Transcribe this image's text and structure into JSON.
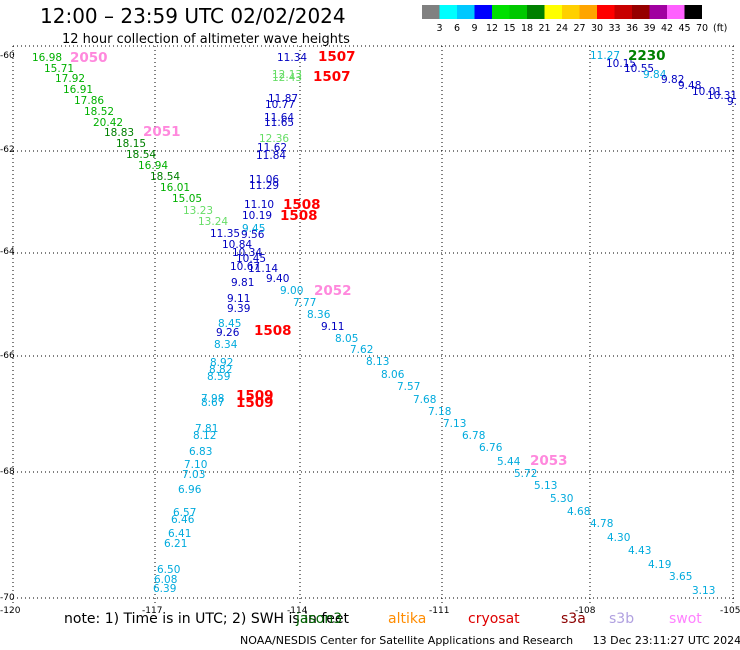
{
  "header": {
    "title": "12:00 – 23:59 UTC 02/02/2024",
    "subtitle": "12 hour collection of altimeter wave heights"
  },
  "legend": {
    "colors": [
      "#808080",
      "#00ffff",
      "#00c8ff",
      "#0000ff",
      "#00e000",
      "#00c800",
      "#008000",
      "#ffff00",
      "#ffd000",
      "#ffa500",
      "#ff0000",
      "#c80000",
      "#960000",
      "#a000a0",
      "#ff60ff",
      "#000000"
    ],
    "labels": [
      "3",
      "6",
      "9",
      "12",
      "15",
      "18",
      "21",
      "24",
      "27",
      "30",
      "33",
      "36",
      "39",
      "42",
      "45",
      "70"
    ],
    "unit": "(ft)"
  },
  "axes": {
    "lat_labels": [
      "-60",
      "-62",
      "-64",
      "-66",
      "-68",
      "-70"
    ],
    "lon_labels": [
      "-120",
      "-117",
      "-114",
      "-111",
      "-108",
      "-105"
    ]
  },
  "note": {
    "prefix": "note:  1) Time is in UTC;  2) SWH is in feet",
    "satellites": [
      {
        "name": "jason3",
        "color": "#006400"
      },
      {
        "name": "altika",
        "color": "#ff8c00"
      },
      {
        "name": "cryosat",
        "color": "#dd0000"
      },
      {
        "name": "s3a",
        "color": "#8b0000"
      },
      {
        "name": "s3b",
        "color": "#b0a0e0"
      },
      {
        "name": "swot",
        "color": "#ff80ff"
      }
    ]
  },
  "credit": {
    "source": "NOAA/NESDIS Center for Satellite Applications and Research",
    "timestamp": "13 Dec 23:11:27 UTC 2024"
  },
  "tracks": [
    {
      "id": "track-1508",
      "label_color": "#ff0000",
      "times": [
        "1507",
        "1507",
        "1508",
        "1508",
        "1508",
        "1509",
        "1509"
      ]
    },
    {
      "id": "track-2050",
      "label_color": "#ff88dd",
      "times": [
        "2050",
        "2051",
        "2052",
        "2053"
      ]
    },
    {
      "id": "track-2230",
      "label_color": "#008000",
      "times": [
        "2230"
      ]
    }
  ],
  "observations": [
    {
      "swh": "16.98",
      "color": "#00b000"
    },
    {
      "swh": "15.71",
      "color": "#00b000"
    },
    {
      "swh": "17.92",
      "color": "#00b000"
    },
    {
      "swh": "16.91",
      "color": "#00b000"
    },
    {
      "swh": "17.86",
      "color": "#00b000"
    },
    {
      "swh": "18.52",
      "color": "#00b000"
    },
    {
      "swh": "20.42",
      "color": "#00b000"
    },
    {
      "swh": "18.83",
      "color": "#008000"
    },
    {
      "swh": "18.15",
      "color": "#008000"
    },
    {
      "swh": "18.54",
      "color": "#008000"
    },
    {
      "swh": "16.94",
      "color": "#00b000"
    },
    {
      "swh": "18.54",
      "color": "#008000"
    },
    {
      "swh": "16.01",
      "color": "#00b000"
    },
    {
      "swh": "15.05",
      "color": "#00b000"
    },
    {
      "swh": "13.23",
      "color": "#66dd66"
    },
    {
      "swh": "13.24",
      "color": "#66dd66"
    },
    {
      "swh": "11.35",
      "color": "#0000c0"
    },
    {
      "swh": "10.84",
      "color": "#0000c0"
    },
    {
      "swh": "10.34",
      "color": "#0000c0"
    },
    {
      "swh": "10.45",
      "color": "#0000c0"
    },
    {
      "swh": "10.67",
      "color": "#0000c0"
    },
    {
      "swh": "11.14",
      "color": "#0000c0"
    },
    {
      "swh": "9.40",
      "color": "#0000c0"
    },
    {
      "swh": "9.81",
      "color": "#0000c0"
    },
    {
      "swh": "9.11",
      "color": "#0000c0"
    },
    {
      "swh": "9.39",
      "color": "#0000c0"
    },
    {
      "swh": "8.45",
      "color": "#00aadd"
    },
    {
      "swh": "9.26",
      "color": "#0000c0"
    },
    {
      "swh": "8.34",
      "color": "#00aadd"
    },
    {
      "swh": "8.92",
      "color": "#00aadd"
    },
    {
      "swh": "8.82",
      "color": "#00aadd"
    },
    {
      "swh": "8.59",
      "color": "#00aadd"
    },
    {
      "swh": "7.98",
      "color": "#00aadd"
    },
    {
      "swh": "8.67",
      "color": "#00aadd"
    },
    {
      "swh": "7.81",
      "color": "#00aadd"
    },
    {
      "swh": "8.12",
      "color": "#00aadd"
    },
    {
      "swh": "6.83",
      "color": "#00aadd"
    },
    {
      "swh": "7.10",
      "color": "#00aadd"
    },
    {
      "swh": "7.03",
      "color": "#00aadd"
    },
    {
      "swh": "6.96",
      "color": "#00aadd"
    },
    {
      "swh": "6.57",
      "color": "#00aadd"
    },
    {
      "swh": "6.46",
      "color": "#00aadd"
    },
    {
      "swh": "6.41",
      "color": "#00aadd"
    },
    {
      "swh": "6.21",
      "color": "#00aadd"
    },
    {
      "swh": "6.50",
      "color": "#00aadd"
    },
    {
      "swh": "6.08",
      "color": "#00aadd"
    },
    {
      "swh": "6.39",
      "color": "#00aadd"
    },
    {
      "swh": "11.34",
      "color": "#0000c0"
    },
    {
      "swh": "12.13",
      "color": "#66dd66"
    },
    {
      "swh": "12.43",
      "color": "#66dd66"
    },
    {
      "swh": "11.87",
      "color": "#0000c0"
    },
    {
      "swh": "10.77",
      "color": "#0000c0"
    },
    {
      "swh": "11.64",
      "color": "#0000c0"
    },
    {
      "swh": "11.65",
      "color": "#0000c0"
    },
    {
      "swh": "12.36",
      "color": "#66dd66"
    },
    {
      "swh": "11.62",
      "color": "#0000c0"
    },
    {
      "swh": "11.84",
      "color": "#0000c0"
    },
    {
      "swh": "11.06",
      "color": "#0000c0"
    },
    {
      "swh": "11.29",
      "color": "#0000c0"
    },
    {
      "swh": "11.10",
      "color": "#0000c0"
    },
    {
      "swh": "10.19",
      "color": "#0000c0"
    },
    {
      "swh": "9.45",
      "color": "#00aadd"
    },
    {
      "swh": "9.56",
      "color": "#0000c0"
    },
    {
      "swh": "9.00",
      "color": "#00aadd"
    },
    {
      "swh": "7.77",
      "color": "#00aadd"
    },
    {
      "swh": "8.36",
      "color": "#00aadd"
    },
    {
      "swh": "9.11",
      "color": "#0000c0"
    },
    {
      "swh": "8.05",
      "color": "#00aadd"
    },
    {
      "swh": "7.62",
      "color": "#00aadd"
    },
    {
      "swh": "8.13",
      "color": "#00aadd"
    },
    {
      "swh": "8.06",
      "color": "#00aadd"
    },
    {
      "swh": "7.57",
      "color": "#00aadd"
    },
    {
      "swh": "7.68",
      "color": "#00aadd"
    },
    {
      "swh": "7.18",
      "color": "#00aadd"
    },
    {
      "swh": "7.13",
      "color": "#00aadd"
    },
    {
      "swh": "6.78",
      "color": "#00aadd"
    },
    {
      "swh": "6.76",
      "color": "#00aadd"
    },
    {
      "swh": "5.44",
      "color": "#00aadd"
    },
    {
      "swh": "5.72",
      "color": "#00aadd"
    },
    {
      "swh": "5.13",
      "color": "#00aadd"
    },
    {
      "swh": "5.30",
      "color": "#00aadd"
    },
    {
      "swh": "4.68",
      "color": "#00aadd"
    },
    {
      "swh": "4.78",
      "color": "#00aadd"
    },
    {
      "swh": "4.30",
      "color": "#00aadd"
    },
    {
      "swh": "4.43",
      "color": "#00aadd"
    },
    {
      "swh": "4.19",
      "color": "#00aadd"
    },
    {
      "swh": "3.65",
      "color": "#00aadd"
    },
    {
      "swh": "3.13",
      "color": "#00aadd"
    },
    {
      "swh": "11.27",
      "color": "#00aadd"
    },
    {
      "swh": "10.15",
      "color": "#0000c0"
    },
    {
      "swh": "10.55",
      "color": "#0000c0"
    },
    {
      "swh": "9.84",
      "color": "#00aadd"
    },
    {
      "swh": "9.82",
      "color": "#0000c0"
    },
    {
      "swh": "9.48",
      "color": "#0000c0"
    },
    {
      "swh": "10.01",
      "color": "#0000c0"
    },
    {
      "swh": "10.31",
      "color": "#0000c0"
    },
    {
      "swh": "9.",
      "color": "#0000c0"
    }
  ]
}
